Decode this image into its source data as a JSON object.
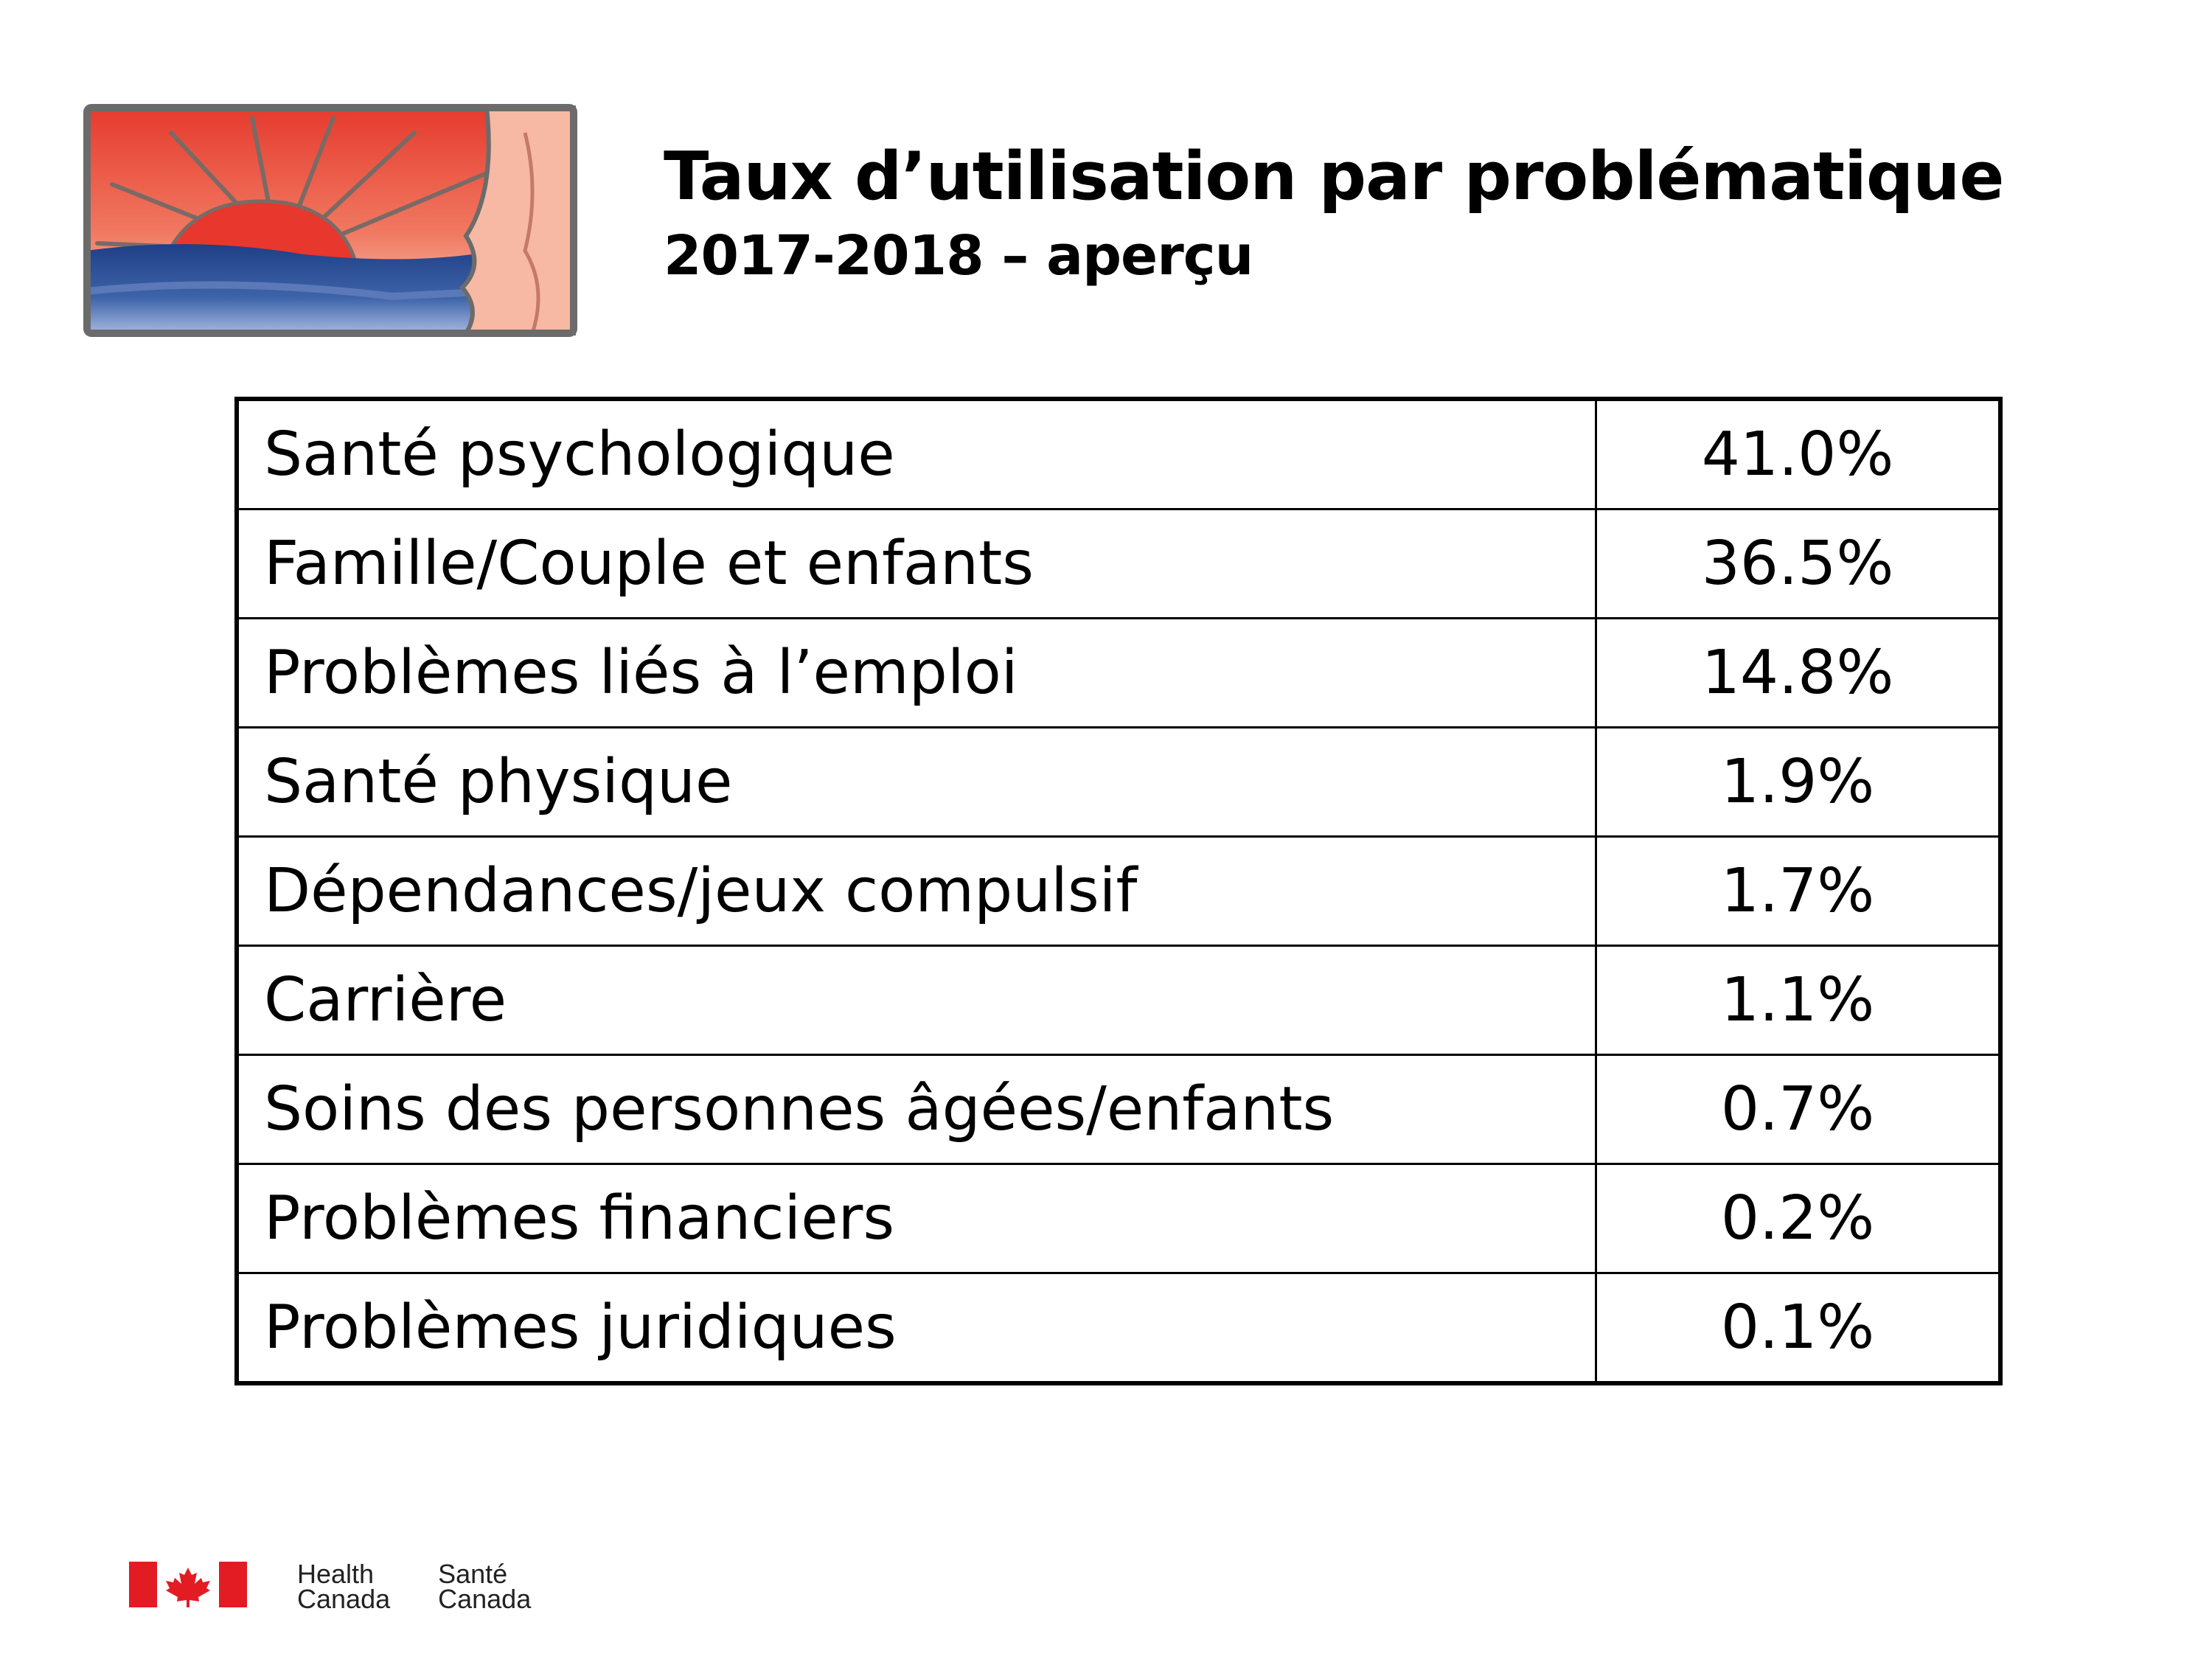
{
  "header": {
    "title": "Taux d’utilisation par problématique",
    "subtitle": "2017-2018 – aperçu"
  },
  "table": {
    "rows": [
      {
        "label": "Santé psychologique",
        "value": "41.0%"
      },
      {
        "label": "Famille/Couple et enfants",
        "value": "36.5%"
      },
      {
        "label": "Problèmes liés à l’emploi",
        "value": "14.8%"
      },
      {
        "label": "Santé physique",
        "value": "1.9%"
      },
      {
        "label": "Dépendances/jeux compulsif",
        "value": "1.7%"
      },
      {
        "label": "Carrière",
        "value": "1.1%"
      },
      {
        "label": "Soins des personnes âgées/enfants",
        "value": "0.7%"
      },
      {
        "label": "Problèmes financiers",
        "value": "0.2%"
      },
      {
        "label": "Problèmes juridiques",
        "value": "0.1%"
      }
    ]
  },
  "footer": {
    "english_line1": "Health",
    "english_line2": "Canada",
    "french_line1": "Santé",
    "french_line2": "Canada"
  },
  "colors": {
    "flag_red": "#e31b23",
    "logo_red": "#e8433a",
    "logo_blue": "#2e4d8c",
    "logo_light_blue": "#8fa5d6",
    "logo_outline": "#6b6b6b"
  }
}
